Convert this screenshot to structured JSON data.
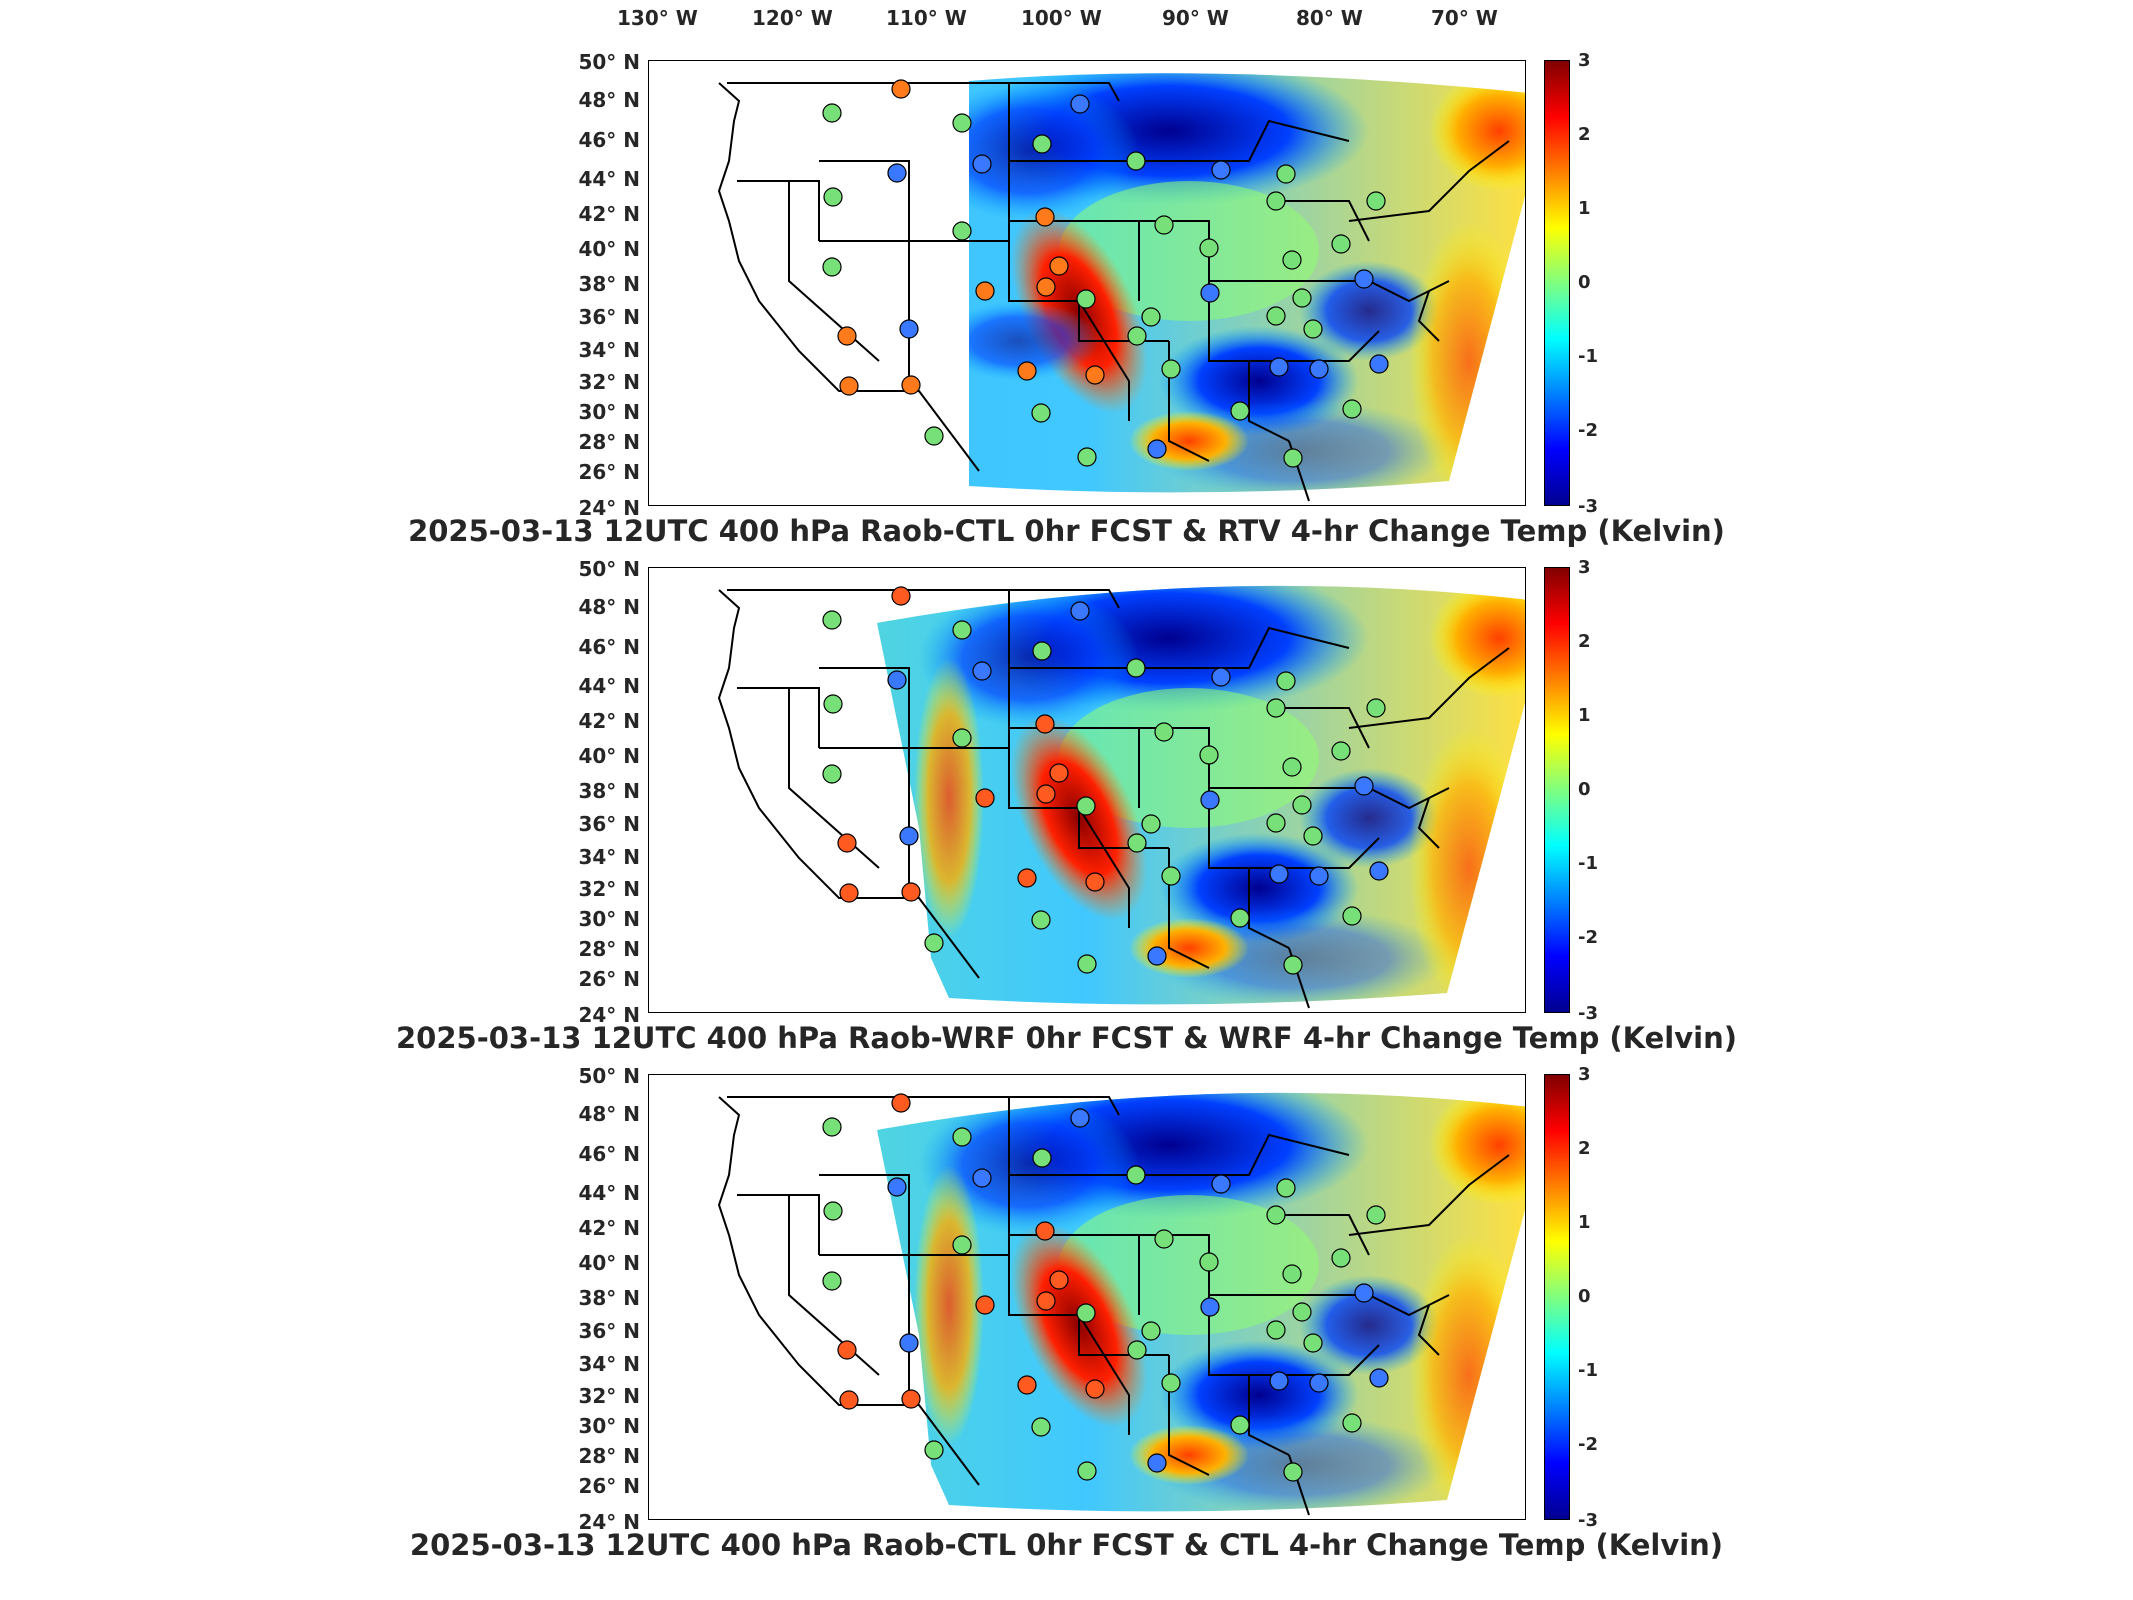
{
  "longitude_labels": [
    "130° W",
    "120° W",
    "110° W",
    "100° W",
    "90° W",
    "80° W",
    "70° W"
  ],
  "latitude_labels": [
    "50° N",
    "48° N",
    "46° N",
    "44° N",
    "42° N",
    "40° N",
    "38° N",
    "36° N",
    "34° N",
    "32° N",
    "30° N",
    "28° N",
    "26° N",
    "24° N"
  ],
  "colorbar": {
    "min": -3,
    "max": 3,
    "ticks": [
      "3",
      "2",
      "1",
      "0",
      "-1",
      "-2",
      "-3"
    ]
  },
  "panels": [
    {
      "title": "2025-03-13 12UTC 400 hPa Raob-CTL 0hr FCST & RTV 4-hr Change Temp (Kelvin)"
    },
    {
      "title": "2025-03-13 12UTC 400 hPa Raob-WRF 0hr FCST & WRF 4-hr Change Temp (Kelvin)"
    },
    {
      "title": "2025-03-13 12UTC 400 hPa Raob-CTL 0hr FCST & CTL 4-hr Change Temp (Kelvin)"
    }
  ],
  "colors": {
    "warm": "#c80000",
    "cold": "#0000c8",
    "neutral": "#40d0a0",
    "station_edge": "#000000"
  }
}
